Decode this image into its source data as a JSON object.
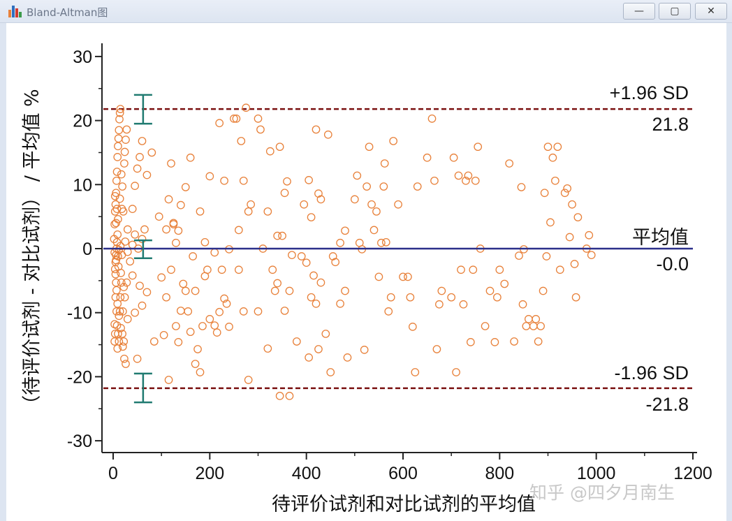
{
  "window": {
    "title": "Bland-Altman图",
    "buttons": {
      "minimize": "—",
      "maximize": "▢",
      "close": "✕"
    }
  },
  "watermark": "知乎 @四夕月南生",
  "chart_data": {
    "type": "scatter",
    "xlabel": "待评价试剂和对比试剂的平均值",
    "ylabel": "（待评价试剂 - 对比试剂） / 平均值 %",
    "xlim": [
      -20,
      1200
    ],
    "ylim": [
      -32,
      32
    ],
    "xticks": [
      0,
      200,
      400,
      600,
      800,
      1000,
      1200
    ],
    "yticks": [
      -30,
      -20,
      -10,
      0,
      10,
      20,
      30
    ],
    "grid": false,
    "mean_line": {
      "label": "平均值",
      "value_label": "-0.0",
      "value": 0.0,
      "color": "#2b2f8a"
    },
    "upper_loa": {
      "label": "+1.96 SD",
      "value_label": "21.8",
      "value": 21.8,
      "color": "#7a1010"
    },
    "lower_loa": {
      "label": "-1.96 SD",
      "value_label": "-21.8",
      "value": -21.8,
      "color": "#7a1010"
    },
    "ci_bars": [
      {
        "x": 62,
        "low": 19.5,
        "high": 24.0
      },
      {
        "x": 62,
        "low": -1.5,
        "high": 1.3
      },
      {
        "x": 62,
        "low": -24.0,
        "high": -19.5
      }
    ],
    "colors": {
      "points": "#e8813a",
      "ci": "#1f7a70",
      "axis": "#222222"
    },
    "points": [
      [
        3,
        -14.5
      ],
      [
        4,
        -13.3
      ],
      [
        5,
        -7.6
      ],
      [
        6,
        -5.3
      ],
      [
        7,
        -9.8
      ],
      [
        8,
        -12.0
      ],
      [
        9,
        -15.6
      ],
      [
        10,
        -13.3
      ],
      [
        12,
        -14.5
      ],
      [
        14,
        -9.8
      ],
      [
        15,
        -7.6
      ],
      [
        17,
        -5.3
      ],
      [
        19,
        -13.3
      ],
      [
        20,
        -9.8
      ],
      [
        22,
        -14.5
      ],
      [
        24,
        -7.6
      ],
      [
        26,
        -18.0
      ],
      [
        28,
        -5.3
      ],
      [
        30,
        -11.0
      ],
      [
        4,
        -3.2
      ],
      [
        5,
        -2.1
      ],
      [
        6,
        -1.0
      ],
      [
        7,
        0.0
      ],
      [
        8,
        1.0
      ],
      [
        9,
        2.2
      ],
      [
        10,
        -1.2
      ],
      [
        12,
        -0.2
      ],
      [
        15,
        0.4
      ],
      [
        18,
        -1.0
      ],
      [
        25,
        1.1
      ],
      [
        30,
        -0.5
      ],
      [
        35,
        -2.0
      ],
      [
        3,
        3.8
      ],
      [
        4,
        5.8
      ],
      [
        5,
        6.9
      ],
      [
        6,
        8.7
      ],
      [
        7,
        10.6
      ],
      [
        8,
        12.0
      ],
      [
        9,
        14.3
      ],
      [
        10,
        16.0
      ],
      [
        11,
        17.2
      ],
      [
        12,
        18.5
      ],
      [
        13,
        20.2
      ],
      [
        14,
        21.2
      ],
      [
        15,
        21.8
      ],
      [
        17,
        11.6
      ],
      [
        19,
        9.7
      ],
      [
        21,
        5.8
      ],
      [
        23,
        13.3
      ],
      [
        24,
        15.1
      ],
      [
        26,
        17.0
      ],
      [
        28,
        18.6
      ],
      [
        30,
        3.0
      ],
      [
        4,
        8.2
      ],
      [
        6,
        4.0
      ],
      [
        8,
        6.2
      ],
      [
        10,
        4.6
      ],
      [
        14,
        7.8
      ],
      [
        18,
        6.2
      ],
      [
        3,
        -11.8
      ],
      [
        5,
        -4.0
      ],
      [
        7,
        -6.5
      ],
      [
        9,
        -8.6
      ],
      [
        12,
        -10.5
      ],
      [
        16,
        -12.4
      ],
      [
        20,
        -15.3
      ],
      [
        23,
        -17.2
      ],
      [
        2,
        1.5
      ],
      [
        3,
        -0.6
      ],
      [
        6,
        -1.8
      ],
      [
        11,
        -2.8
      ],
      [
        16,
        -3.8
      ],
      [
        22,
        -6.0
      ],
      [
        40,
        -4.2
      ],
      [
        45,
        -10.0
      ],
      [
        50,
        -17.2
      ],
      [
        55,
        -5.8
      ],
      [
        60,
        -8.9
      ],
      [
        70,
        -6.8
      ],
      [
        85,
        -14.5
      ],
      [
        105,
        -13.5
      ],
      [
        40,
        0.6
      ],
      [
        45,
        2.2
      ],
      [
        52,
        0.0
      ],
      [
        60,
        1.5
      ],
      [
        65,
        3.0
      ],
      [
        40,
        6.2
      ],
      [
        45,
        9.8
      ],
      [
        50,
        12.5
      ],
      [
        55,
        14.3
      ],
      [
        60,
        16.8
      ],
      [
        70,
        11.5
      ],
      [
        80,
        15.0
      ],
      [
        95,
        5.0
      ],
      [
        100,
        -4.5
      ],
      [
        110,
        -7.6
      ],
      [
        115,
        -20.5
      ],
      [
        120,
        -3.3
      ],
      [
        125,
        3.8
      ],
      [
        130,
        -12.1
      ],
      [
        135,
        -14.6
      ],
      [
        140,
        -9.7
      ],
      [
        145,
        -5.5
      ],
      [
        150,
        -6.6
      ],
      [
        155,
        -9.8
      ],
      [
        160,
        -13.0
      ],
      [
        165,
        -1.2
      ],
      [
        170,
        -18.0
      ],
      [
        175,
        -15.7
      ],
      [
        180,
        -19.3
      ],
      [
        185,
        -12.1
      ],
      [
        190,
        -4.3
      ],
      [
        195,
        -3.3
      ],
      [
        200,
        -11.0
      ],
      [
        210,
        -12.0
      ],
      [
        215,
        -13.1
      ],
      [
        220,
        -9.9
      ],
      [
        225,
        -3.3
      ],
      [
        230,
        -7.8
      ],
      [
        235,
        -8.6
      ],
      [
        240,
        -12.2
      ],
      [
        110,
        3.0
      ],
      [
        115,
        7.7
      ],
      [
        120,
        13.3
      ],
      [
        125,
        4.0
      ],
      [
        130,
        0.9
      ],
      [
        135,
        2.8
      ],
      [
        140,
        6.8
      ],
      [
        150,
        9.6
      ],
      [
        160,
        14.2
      ],
      [
        170,
        -6.6
      ],
      [
        180,
        5.8
      ],
      [
        190,
        1.0
      ],
      [
        200,
        11.3
      ],
      [
        210,
        -0.6
      ],
      [
        220,
        19.6
      ],
      [
        230,
        10.6
      ],
      [
        240,
        -0.1
      ],
      [
        250,
        20.3
      ],
      [
        255,
        20.3
      ],
      [
        260,
        2.9
      ],
      [
        265,
        16.8
      ],
      [
        270,
        10.6
      ],
      [
        275,
        22.0
      ],
      [
        280,
        5.8
      ],
      [
        285,
        6.9
      ],
      [
        300,
        20.3
      ],
      [
        305,
        18.6
      ],
      [
        310,
        0.0
      ],
      [
        320,
        5.8
      ],
      [
        325,
        15.2
      ],
      [
        330,
        -3.3
      ],
      [
        335,
        -6.6
      ],
      [
        340,
        2.0
      ],
      [
        345,
        15.9
      ],
      [
        350,
        2.0
      ],
      [
        355,
        8.7
      ],
      [
        360,
        10.5
      ],
      [
        365,
        -6.6
      ],
      [
        370,
        -1.0
      ],
      [
        260,
        -3.3
      ],
      [
        270,
        -9.8
      ],
      [
        280,
        -20.5
      ],
      [
        300,
        -9.8
      ],
      [
        320,
        -15.6
      ],
      [
        340,
        -5.4
      ],
      [
        345,
        -23.0
      ],
      [
        355,
        -9.7
      ],
      [
        365,
        -23.0
      ],
      [
        380,
        -14.5
      ],
      [
        390,
        -1.2
      ],
      [
        400,
        -2.2
      ],
      [
        405,
        -17.0
      ],
      [
        410,
        -7.6
      ],
      [
        415,
        -4.2
      ],
      [
        420,
        -8.6
      ],
      [
        425,
        -15.7
      ],
      [
        430,
        -5.3
      ],
      [
        440,
        -13.3
      ],
      [
        450,
        -19.3
      ],
      [
        460,
        -2.1
      ],
      [
        470,
        -8.6
      ],
      [
        480,
        -6.6
      ],
      [
        485,
        -17.0
      ],
      [
        395,
        6.9
      ],
      [
        405,
        10.7
      ],
      [
        410,
        4.9
      ],
      [
        420,
        18.6
      ],
      [
        425,
        8.6
      ],
      [
        430,
        7.7
      ],
      [
        445,
        17.8
      ],
      [
        455,
        -1.2
      ],
      [
        470,
        0.9
      ],
      [
        480,
        2.8
      ],
      [
        500,
        7.7
      ],
      [
        505,
        11.4
      ],
      [
        510,
        0.9
      ],
      [
        515,
        -0.1
      ],
      [
        520,
        -15.8
      ],
      [
        525,
        9.7
      ],
      [
        530,
        15.9
      ],
      [
        535,
        6.9
      ],
      [
        540,
        2.9
      ],
      [
        545,
        5.8
      ],
      [
        550,
        -4.4
      ],
      [
        555,
        0.9
      ],
      [
        560,
        9.7
      ],
      [
        562,
        13.3
      ],
      [
        565,
        1.0
      ],
      [
        570,
        -9.8
      ],
      [
        575,
        -7.6
      ],
      [
        580,
        16.8
      ],
      [
        590,
        6.9
      ],
      [
        600,
        -4.4
      ],
      [
        610,
        -4.4
      ],
      [
        615,
        -7.6
      ],
      [
        620,
        -12.2
      ],
      [
        625,
        -19.3
      ],
      [
        630,
        9.7
      ],
      [
        650,
        14.2
      ],
      [
        660,
        20.3
      ],
      [
        665,
        10.6
      ],
      [
        670,
        -15.7
      ],
      [
        675,
        -8.7
      ],
      [
        680,
        -6.6
      ],
      [
        700,
        -7.6
      ],
      [
        705,
        14.2
      ],
      [
        710,
        -19.3
      ],
      [
        715,
        11.4
      ],
      [
        720,
        -3.3
      ],
      [
        725,
        -8.7
      ],
      [
        730,
        10.6
      ],
      [
        735,
        11.4
      ],
      [
        740,
        -14.6
      ],
      [
        745,
        -3.3
      ],
      [
        750,
        10.6
      ],
      [
        755,
        15.9
      ],
      [
        760,
        0.0
      ],
      [
        770,
        -12.1
      ],
      [
        780,
        -6.6
      ],
      [
        790,
        -14.6
      ],
      [
        795,
        -7.6
      ],
      [
        800,
        -3.3
      ],
      [
        810,
        -5.5
      ],
      [
        820,
        13.3
      ],
      [
        830,
        -14.5
      ],
      [
        840,
        -1.1
      ],
      [
        845,
        9.6
      ],
      [
        848,
        -8.7
      ],
      [
        850,
        -0.1
      ],
      [
        855,
        -12.1
      ],
      [
        860,
        -11.0
      ],
      [
        870,
        -12.1
      ],
      [
        875,
        -11.0
      ],
      [
        880,
        -14.5
      ],
      [
        885,
        -12.1
      ],
      [
        890,
        -6.6
      ],
      [
        893,
        8.7
      ],
      [
        897,
        -1.2
      ],
      [
        900,
        15.9
      ],
      [
        905,
        4.1
      ],
      [
        910,
        14.2
      ],
      [
        915,
        10.6
      ],
      [
        920,
        15.9
      ],
      [
        925,
        -3.3
      ],
      [
        935,
        8.7
      ],
      [
        940,
        9.4
      ],
      [
        945,
        1.8
      ],
      [
        950,
        6.9
      ],
      [
        955,
        -2.4
      ],
      [
        958,
        -7.6
      ],
      [
        962,
        4.9
      ],
      [
        980,
        0.0
      ],
      [
        985,
        2.1
      ],
      [
        990,
        -1.0
      ]
    ]
  }
}
